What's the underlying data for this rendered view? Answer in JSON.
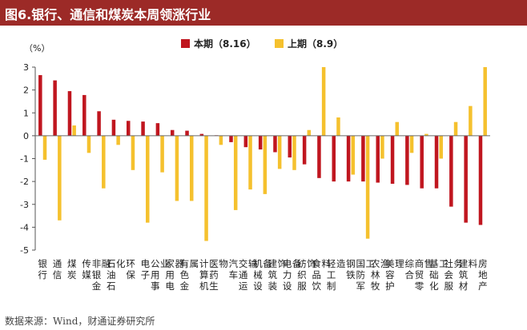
{
  "title": "图6.银行、通信和煤炭本周领涨行业",
  "source": "数据来源：Wind，财通证券研究所",
  "colors": {
    "current": "#c0161f",
    "previous": "#f5c12e",
    "title_bg": "#9c2a27"
  },
  "chart_data": {
    "type": "bar",
    "unit_label": "（%）",
    "ylim": [
      -5,
      3
    ],
    "yticks": [
      3,
      2,
      1,
      0,
      -1,
      -2,
      -3,
      -4,
      -5
    ],
    "legend_position": "top-right",
    "categories": [
      "银行",
      "通信",
      "煤炭",
      "传媒",
      "非银金融",
      "石油石化",
      "环保",
      "电子",
      "公用事业",
      "家用电器",
      "有色金属",
      "计算机",
      "医药生物",
      "汽车",
      "交通运输",
      "机械设备",
      "建筑装饰",
      "电力设备",
      "纺织服饰",
      "食品饮料",
      "轻工制造",
      "钢铁",
      "国防军工",
      "农林牧渔",
      "美容护理",
      "综合",
      "商贸零售",
      "基础化工",
      "社会服务",
      "建筑材料",
      "房地产"
    ],
    "series": [
      {
        "name": "本期（8.16）",
        "values": [
          2.65,
          2.42,
          1.95,
          1.78,
          1.07,
          0.7,
          0.65,
          0.62,
          0.55,
          0.25,
          0.22,
          0.08,
          0.02,
          -0.28,
          -0.5,
          -0.6,
          -0.72,
          -0.95,
          -1.25,
          -1.85,
          -2.0,
          -2.0,
          -2.0,
          -2.05,
          -2.1,
          -2.15,
          -2.3,
          -2.3,
          -3.1,
          -3.8,
          -3.9
        ]
      },
      {
        "name": "上期（8.9）",
        "values": [
          -1.05,
          -3.7,
          0.45,
          -0.75,
          -2.3,
          -0.4,
          -1.5,
          -3.8,
          -1.6,
          -2.85,
          -2.85,
          -4.6,
          -0.4,
          -3.25,
          -2.35,
          -2.55,
          -1.45,
          -1.5,
          0.25,
          3.0,
          0.8,
          -1.7,
          -4.5,
          -1.0,
          0.6,
          -0.75,
          0.08,
          -1.0,
          0.6,
          1.3,
          3.0
        ]
      }
    ]
  }
}
